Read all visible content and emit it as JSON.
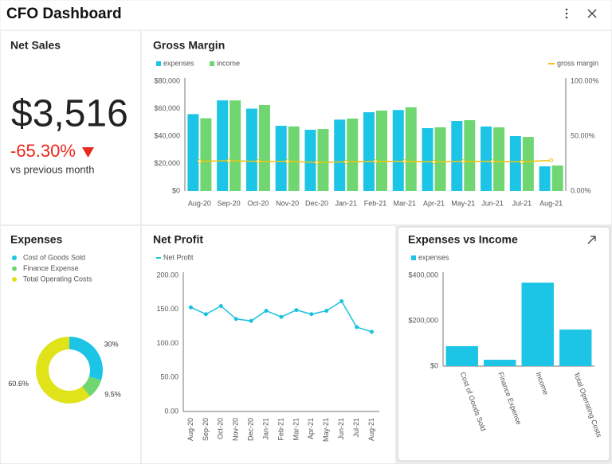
{
  "header": {
    "title": "CFO Dashboard"
  },
  "net_sales": {
    "title": "Net Sales",
    "value": "$3,516",
    "change": "-65.30%",
    "caption": "vs previous month"
  },
  "chart_data": [
    {
      "type": "bar",
      "title": "Gross Margin",
      "categories": [
        "Aug-20",
        "Sep-20",
        "Oct-20",
        "Nov-20",
        "Dec-20",
        "Jan-21",
        "Feb-21",
        "Mar-21",
        "Apr-21",
        "May-21",
        "Jun-21",
        "Jul-21",
        "Aug-21"
      ],
      "series": [
        {
          "name": "expenses",
          "color": "#1cc4e6",
          "values": [
            56000,
            66000,
            60000,
            47500,
            44600,
            52000,
            57400,
            59000,
            45800,
            51000,
            47000,
            40000,
            18000
          ]
        },
        {
          "name": "income",
          "color": "#6fd672",
          "values": [
            53000,
            66000,
            62600,
            47000,
            45200,
            52800,
            58600,
            61000,
            46400,
            51600,
            46400,
            39400,
            18600
          ]
        },
        {
          "name": "gross margin",
          "color": "#f2c40c",
          "type": "line",
          "axis": "y2",
          "values": [
            27,
            27.5,
            27,
            27,
            26,
            26.5,
            27,
            27,
            26.5,
            27,
            27,
            26.5,
            28
          ]
        }
      ],
      "ylim": [
        0,
        80000
      ],
      "yticks": [
        {
          "value": 0,
          "label": "$0"
        },
        {
          "value": 20000,
          "label": "$20,000"
        },
        {
          "value": 40000,
          "label": "$40,000"
        },
        {
          "value": 60000,
          "label": "$60,000"
        },
        {
          "value": 80000,
          "label": "$80,000"
        }
      ],
      "y2lim": [
        0,
        100
      ],
      "y2ticks": [
        {
          "value": 0,
          "label": "0.00%"
        },
        {
          "value": 50,
          "label": "50.00%"
        },
        {
          "value": 100,
          "label": "100.00%"
        }
      ]
    },
    {
      "type": "pie",
      "title": "Expenses",
      "donut": true,
      "categories": [
        "Cost of Goods Sold",
        "Finance Expense",
        "Total Operating Costs"
      ],
      "values": [
        30,
        9.5,
        60.6
      ],
      "value_labels": [
        "30%",
        "9.5%",
        "60.6%"
      ],
      "colors": [
        "#1cc4e6",
        "#6fd672",
        "#e0e31a"
      ]
    },
    {
      "type": "line",
      "title": "Net Profit",
      "categories": [
        "Aug-20",
        "Sep-20",
        "Oct-20",
        "Nov-20",
        "Dec-20",
        "Jan-21",
        "Feb-21",
        "Mar-21",
        "Apr-21",
        "May-21",
        "Jun-21",
        "Jul-21",
        "Aug-21"
      ],
      "series": [
        {
          "name": "Net Profit",
          "color": "#1ac1df",
          "values": [
            153,
            143,
            155,
            136,
            133,
            148,
            139,
            149,
            143,
            148,
            162,
            124,
            117
          ]
        }
      ],
      "ylim": [
        0,
        200
      ],
      "yticks": [
        {
          "value": 0,
          "label": "0.00"
        },
        {
          "value": 50,
          "label": "50.00"
        },
        {
          "value": 100,
          "label": "100.00"
        },
        {
          "value": 150,
          "label": "150.00"
        },
        {
          "value": 200,
          "label": "200.00"
        }
      ]
    },
    {
      "type": "bar",
      "title": "Expenses vs Income",
      "categories": [
        "Cost of Goods Sold",
        "Finance Expense",
        "Income",
        "Total Operating Costs"
      ],
      "series": [
        {
          "name": "expenses",
          "color": "#1cc4e6",
          "values": [
            88000,
            28000,
            368000,
            161000
          ]
        }
      ],
      "ylim": [
        0,
        400000
      ],
      "yticks": [
        {
          "value": 0,
          "label": "$0"
        },
        {
          "value": 200000,
          "label": "$200,000"
        },
        {
          "value": 400000,
          "label": "$400,000"
        }
      ]
    }
  ]
}
